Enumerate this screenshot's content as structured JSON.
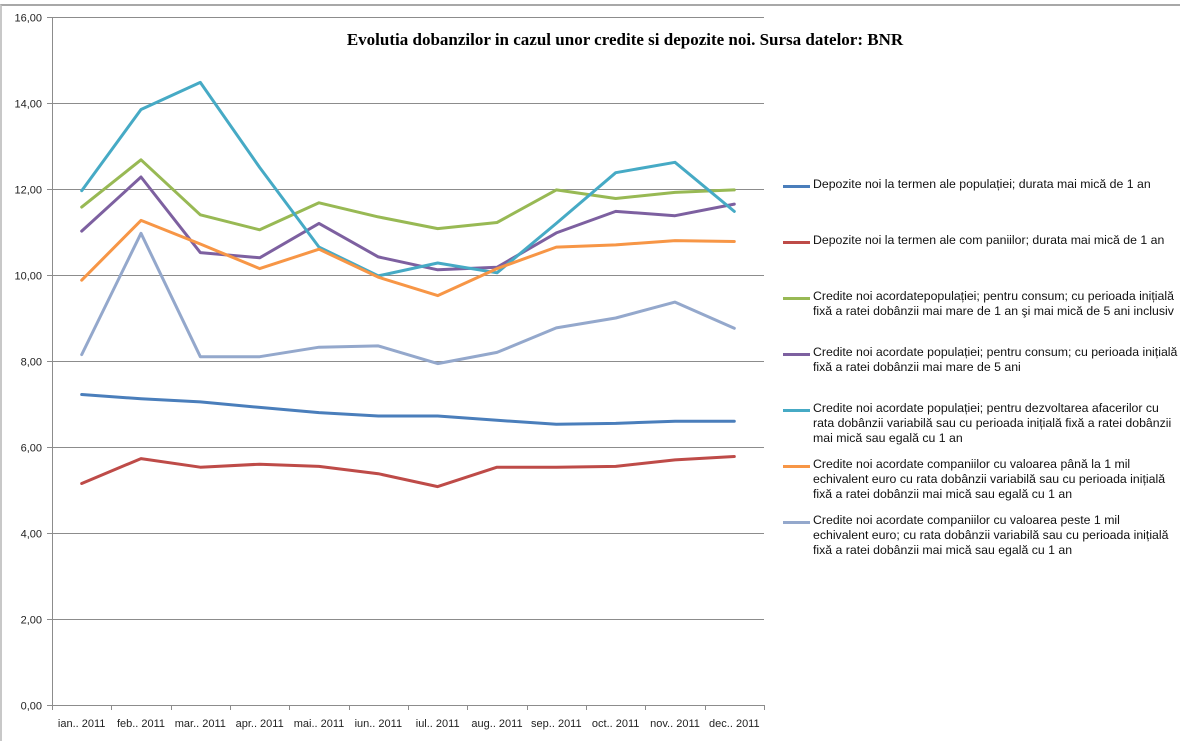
{
  "window": {
    "partial_header_text": "Depozite noi la  Depozite noi la   Credite noi   Credite noi   Credite noi   Credite noi   Credite noi"
  },
  "chart_data": {
    "type": "line",
    "title": "Evolutia dobanzilor in cazul unor credite si depozite noi. Sursa datelor: BNR",
    "xlabel": "",
    "ylabel": "",
    "ylim": [
      0,
      16
    ],
    "y_ticks": [
      0,
      2,
      4,
      6,
      8,
      10,
      12,
      14,
      16
    ],
    "y_tick_labels": [
      "0,00",
      "2,00",
      "4,00",
      "6,00",
      "8,00",
      "10,00",
      "12,00",
      "14,00",
      "16,00"
    ],
    "grid": true,
    "legend_position": "right",
    "categories": [
      "ian.. 2011",
      "feb.. 2011",
      "mar.. 2011",
      "apr.. 2011",
      "mai.. 2011",
      "iun.. 2011",
      "iul.. 2011",
      "aug.. 2011",
      "sep.. 2011",
      "oct.. 2011",
      "nov.. 2011",
      "dec.. 2011"
    ],
    "series": [
      {
        "name": "Depozite noi la termen ale populației; durata mai mică de 1 an",
        "color": "#4A7EBB",
        "values": [
          7.22,
          7.12,
          7.05,
          6.92,
          6.8,
          6.72,
          6.72,
          6.62,
          6.53,
          6.55,
          6.6,
          6.6
        ]
      },
      {
        "name": "Depozite noi la termen ale com paniilor; durata mai mică de 1 an",
        "color": "#BE4B48",
        "values": [
          5.15,
          5.73,
          5.53,
          5.6,
          5.55,
          5.38,
          5.08,
          5.53,
          5.53,
          5.55,
          5.7,
          5.78
        ]
      },
      {
        "name": "Credite noi acordatepopulației; pentru consum; cu perioada inițială fixă a ratei dobânzii mai mare de 1 an şi mai mică de 5 ani inclusiv",
        "color": "#98B954",
        "values": [
          11.58,
          12.68,
          11.4,
          11.05,
          11.68,
          11.35,
          11.08,
          11.22,
          11.98,
          11.78,
          11.92,
          11.98
        ]
      },
      {
        "name": "Credite noi acordate populației; pentru consum; cu perioada inițială fixă a ratei dobânzii mai mare de 5 ani",
        "color": "#7D60A0",
        "values": [
          11.02,
          12.28,
          10.52,
          10.4,
          11.2,
          10.42,
          10.12,
          10.18,
          10.98,
          11.48,
          11.38,
          11.65
        ]
      },
      {
        "name": "Credite noi acordate  populației; pentru dezvoltarea afacerilor cu rata dobânzii variabilă sau cu perioada inițială fixă a ratei dobânzii mai mică sau egală cu 1 an",
        "color": "#46AAC5",
        "values": [
          11.96,
          13.85,
          14.48,
          12.5,
          10.65,
          9.98,
          10.28,
          10.05,
          11.2,
          12.38,
          12.62,
          11.48
        ]
      },
      {
        "name": "Credite noi acordate companiilor cu valoarea până la 1 mil echivalent euro  cu rata dobânzii variabilă sau cu perioada inițială fixă a ratei dobânzii mai mică sau egală cu 1 an",
        "color": "#F79646",
        "values": [
          9.88,
          11.27,
          10.72,
          10.15,
          10.6,
          9.95,
          9.52,
          10.15,
          10.65,
          10.7,
          10.8,
          10.78
        ]
      },
      {
        "name": "Credite noi acordate companiilor cu valoarea peste 1 mil echivalent euro; cu rata dobânzii variabilă sau cu perioada inițială fixă a ratei dobânzii mai mică sau egală cu 1 an",
        "color": "#94A8CC",
        "values": [
          8.15,
          10.97,
          8.1,
          8.1,
          8.32,
          8.35,
          7.94,
          8.2,
          8.77,
          9.0,
          9.37,
          8.76
        ]
      }
    ]
  }
}
